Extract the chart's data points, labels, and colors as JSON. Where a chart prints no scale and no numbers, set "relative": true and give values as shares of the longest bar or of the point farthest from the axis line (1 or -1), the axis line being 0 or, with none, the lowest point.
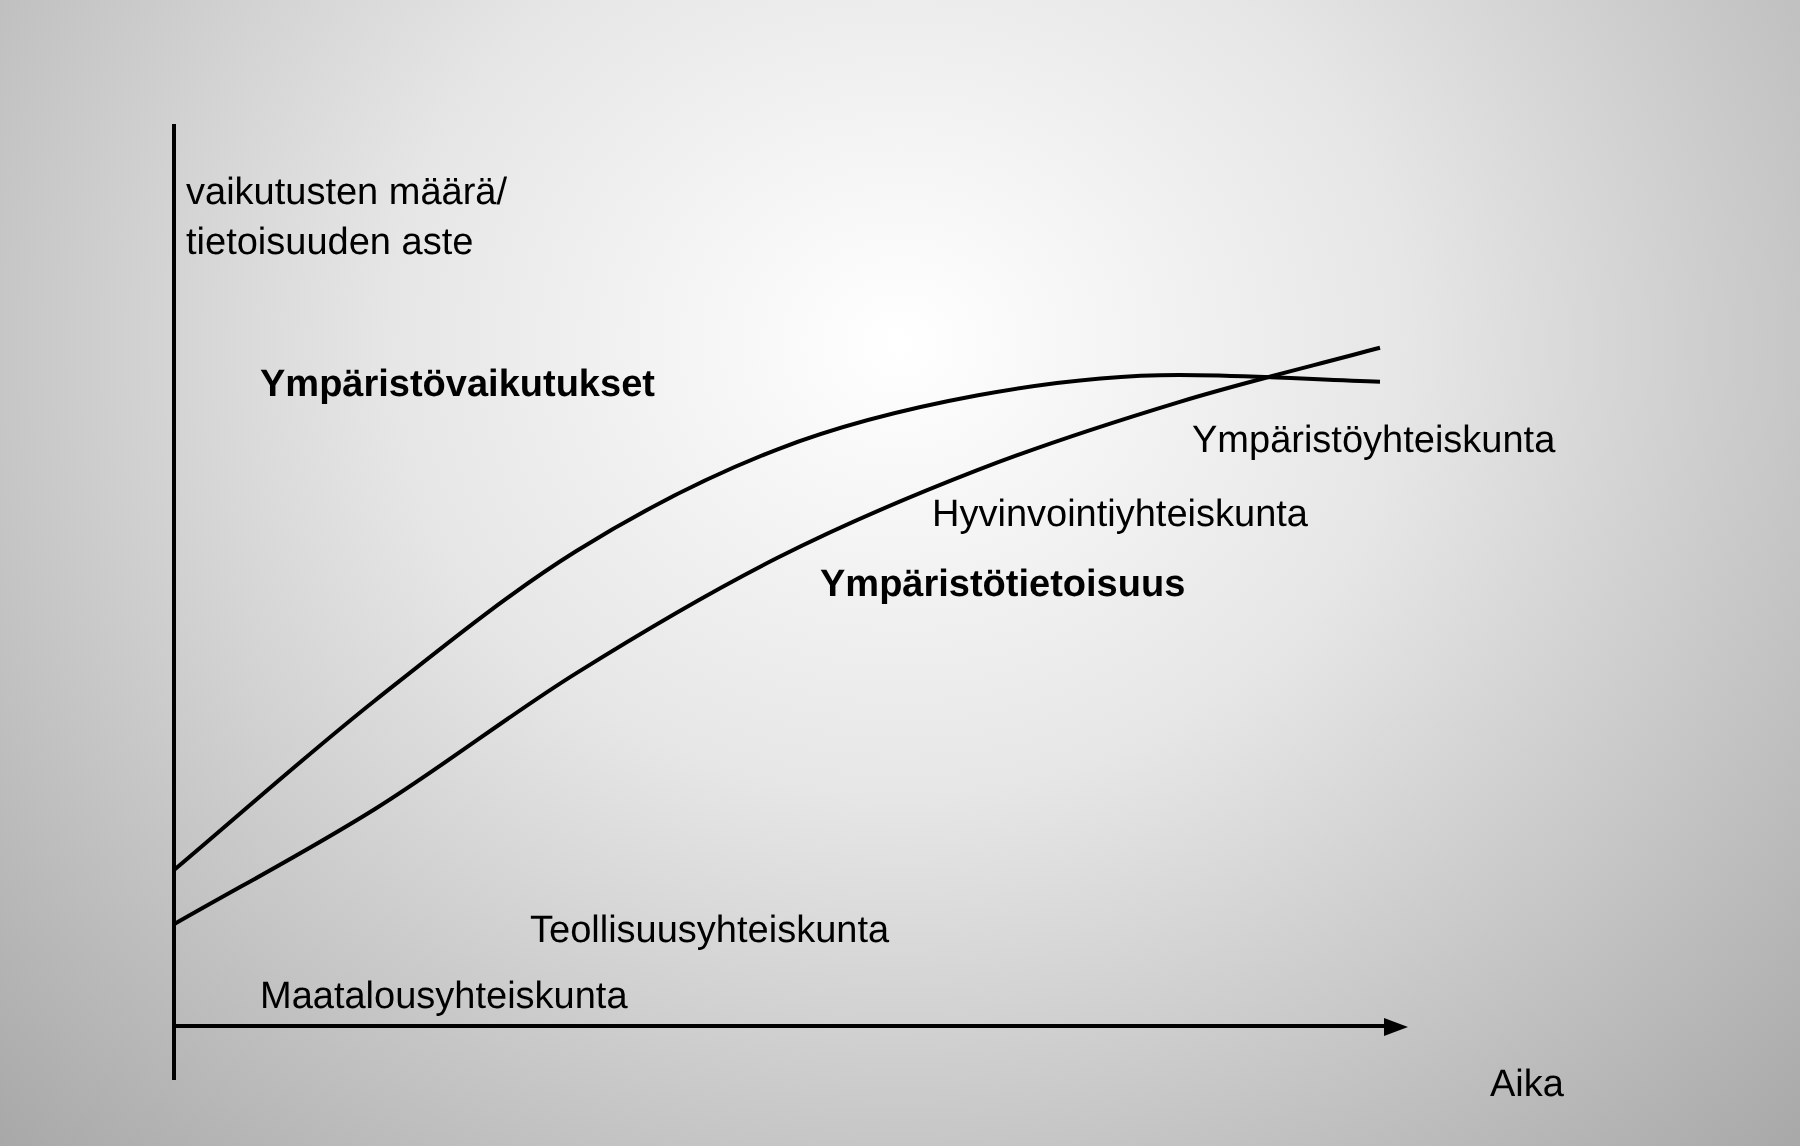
{
  "chart_data": {
    "type": "line",
    "relative": true,
    "xlabel": "Aika",
    "ylabel": "vaikutusten määrä/\ntietoisuuden aste",
    "categories": [
      null,
      null,
      null,
      null,
      null,
      null,
      null
    ],
    "series": [
      {
        "name": "Ympäristövaikutukset",
        "color": "#000000",
        "values": [
          0.23,
          0.48,
          0.7,
          0.85,
          0.93,
          0.96,
          0.95
        ]
      },
      {
        "name": "Ympäristötietoisuus",
        "color": "#000000",
        "values": [
          0.15,
          0.32,
          0.52,
          0.69,
          0.82,
          0.92,
          1.0
        ]
      }
    ],
    "annotations": [
      "Maatalousyhteiskunta",
      "Teollisuusyhteiskunta",
      "Hyvinvointiyhteiskunta",
      "Ympäristöyhteiskunta"
    ],
    "legend": false,
    "marker": "none",
    "line_style": "solid"
  }
}
